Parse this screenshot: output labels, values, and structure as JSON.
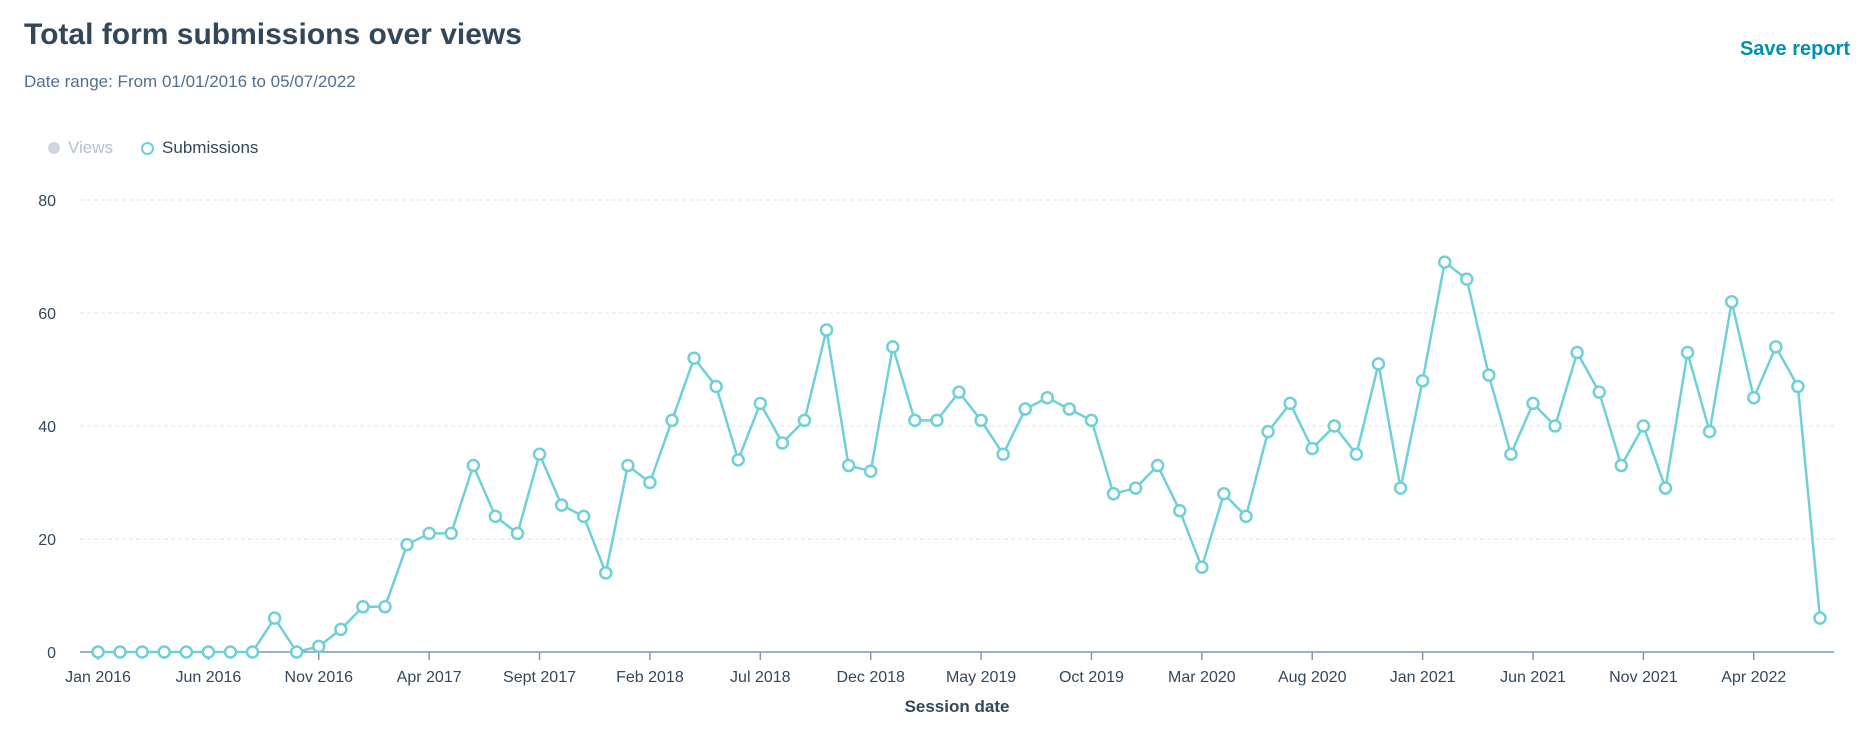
{
  "header": {
    "title": "Total form submissions over views",
    "subtitle": "Date range: From 01/01/2016 to 05/07/2022",
    "save_label": "Save report"
  },
  "legend": [
    {
      "name": "Views",
      "active": false,
      "color": "#cbd6e2"
    },
    {
      "name": "Submissions",
      "active": true,
      "color": "#6fd0d6"
    }
  ],
  "chart_data": {
    "type": "line",
    "xlabel": "Session date",
    "ylabel": "",
    "ylim": [
      0,
      80
    ],
    "yticks": [
      0,
      20,
      40,
      60,
      80
    ],
    "grid": true,
    "legend_position": "top-left",
    "xtick_labels": [
      {
        "label": "Jan 2016",
        "index": 0
      },
      {
        "label": "Jun 2016",
        "index": 5
      },
      {
        "label": "Nov 2016",
        "index": 10
      },
      {
        "label": "Apr 2017",
        "index": 15
      },
      {
        "label": "Sept 2017",
        "index": 20
      },
      {
        "label": "Feb 2018",
        "index": 25
      },
      {
        "label": "Jul 2018",
        "index": 30
      },
      {
        "label": "Dec 2018",
        "index": 35
      },
      {
        "label": "May 2019",
        "index": 40
      },
      {
        "label": "Oct 2019",
        "index": 45
      },
      {
        "label": "Mar 2020",
        "index": 50
      },
      {
        "label": "Aug 2020",
        "index": 55
      },
      {
        "label": "Jan 2021",
        "index": 60
      },
      {
        "label": "Jun 2021",
        "index": 65
      },
      {
        "label": "Nov 2021",
        "index": 70
      },
      {
        "label": "Apr 2022",
        "index": 75
      }
    ],
    "series": [
      {
        "name": "Submissions",
        "color": "#6fd0d6",
        "values": [
          0,
          0,
          0,
          0,
          0,
          0,
          0,
          0,
          6,
          0,
          1,
          4,
          8,
          8,
          19,
          21,
          21,
          33,
          24,
          21,
          35,
          26,
          24,
          14,
          33,
          30,
          41,
          52,
          47,
          34,
          44,
          37,
          41,
          57,
          33,
          32,
          54,
          41,
          41,
          46,
          41,
          35,
          43,
          45,
          43,
          41,
          28,
          29,
          33,
          25,
          15,
          28,
          24,
          39,
          44,
          36,
          40,
          35,
          51,
          29,
          48,
          69,
          66,
          49,
          35,
          44,
          40,
          53,
          46,
          33,
          40,
          29,
          53,
          39,
          62,
          45,
          54,
          47,
          6
        ]
      }
    ]
  }
}
